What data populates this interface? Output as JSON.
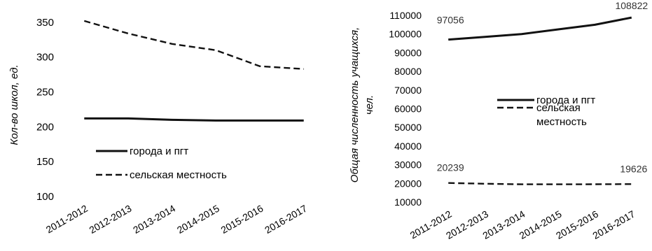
{
  "chart_data": [
    {
      "type": "line",
      "title": "",
      "xlabel": "",
      "ylabel": "Кол-во школ, ед.",
      "categories": [
        "2011-2012",
        "2012-2013",
        "2013-2014",
        "2014-2015",
        "2015-2016",
        "2016-2017"
      ],
      "ylim": [
        100,
        370
      ],
      "yticks": [
        100,
        150,
        200,
        250,
        300,
        350
      ],
      "grid": false,
      "legend": "center",
      "series": [
        {
          "name": "города и пгт",
          "style": "solid",
          "values": [
            212,
            212,
            210,
            209,
            209,
            209
          ]
        },
        {
          "name": "сельская местность",
          "style": "dashed",
          "values": [
            352,
            334,
            319,
            310,
            287,
            283
          ]
        }
      ],
      "data_labels": []
    },
    {
      "type": "line",
      "title": "",
      "xlabel": "",
      "ylabel_lines": [
        "Общая численность учащихся,",
        "чел."
      ],
      "categories": [
        "2011-2012",
        "2012-2013",
        "2013-2014",
        "2014-2015",
        "2015-2016",
        "2016-2017"
      ],
      "ylim": [
        10000,
        110000
      ],
      "yticks": [
        10000,
        20000,
        30000,
        40000,
        50000,
        60000,
        70000,
        80000,
        90000,
        100000,
        110000
      ],
      "grid": false,
      "legend": "center",
      "series": [
        {
          "name": "города и пгт",
          "style": "solid",
          "values": [
            97056,
            98500,
            100000,
            102500,
            105000,
            108822
          ]
        },
        {
          "name": "сельская местность",
          "legend_lines": [
            "сельская",
            "местность"
          ],
          "style": "dashed",
          "values": [
            20239,
            19800,
            19500,
            19500,
            19550,
            19626
          ]
        }
      ],
      "data_labels": [
        {
          "series": 0,
          "index": 0,
          "text": "97056"
        },
        {
          "series": 0,
          "index": 5,
          "text": "108822"
        },
        {
          "series": 1,
          "index": 0,
          "text": "20239"
        },
        {
          "series": 1,
          "index": 5,
          "text": "19626"
        }
      ]
    }
  ]
}
